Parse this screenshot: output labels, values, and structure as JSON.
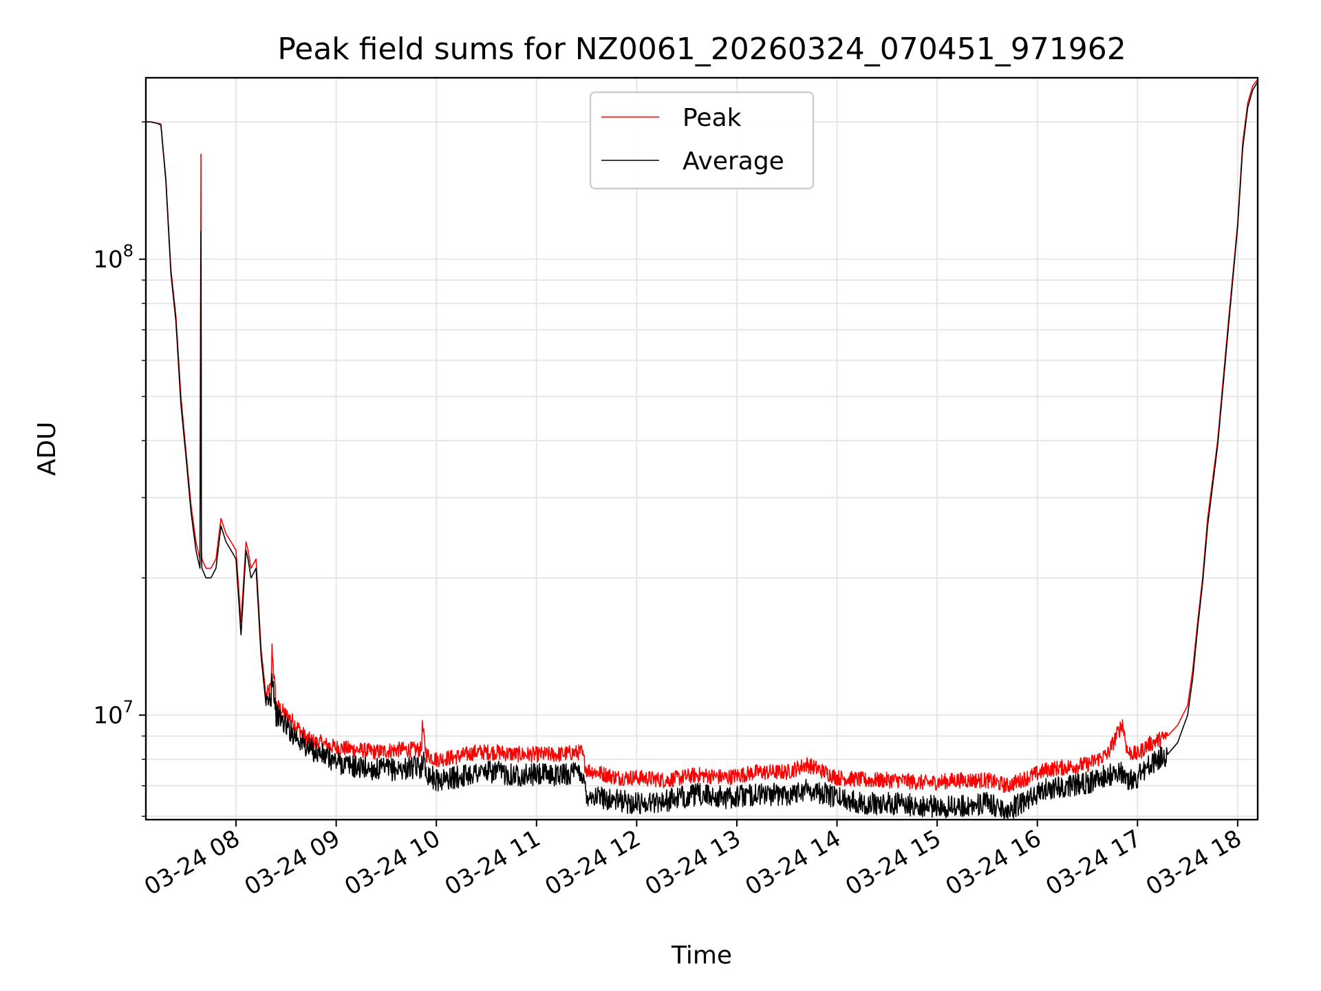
{
  "chart_data": {
    "type": "line",
    "title": "Peak field sums for NZ0061_20260324_070451_971962",
    "xlabel": "Time",
    "ylabel": "ADU",
    "yscale": "log",
    "ylim": [
      5900000,
      250000000
    ],
    "xlim_hours": [
      7.1,
      18.2
    ],
    "x_unit": "hour of day, 2026-03-24",
    "x_ticks": [
      {
        "value": 8,
        "label": "03-24 08"
      },
      {
        "value": 9,
        "label": "03-24 09"
      },
      {
        "value": 10,
        "label": "03-24 10"
      },
      {
        "value": 11,
        "label": "03-24 11"
      },
      {
        "value": 12,
        "label": "03-24 12"
      },
      {
        "value": 13,
        "label": "03-24 13"
      },
      {
        "value": 14,
        "label": "03-24 14"
      },
      {
        "value": 15,
        "label": "03-24 15"
      },
      {
        "value": 16,
        "label": "03-24 16"
      },
      {
        "value": 17,
        "label": "03-24 17"
      },
      {
        "value": 18,
        "label": "03-24 18"
      }
    ],
    "y_ticks": [
      {
        "value": 10000000,
        "base": "10",
        "exp": "7"
      },
      {
        "value": 100000000,
        "base": "10",
        "exp": "8"
      }
    ],
    "grid": true,
    "legend_position": "top-center",
    "series": [
      {
        "name": "Peak",
        "color": "#ff0000",
        "x": [
          7.1,
          7.15,
          7.2,
          7.25,
          7.3,
          7.35,
          7.4,
          7.45,
          7.5,
          7.55,
          7.6,
          7.64,
          7.65,
          7.655,
          7.66,
          7.7,
          7.75,
          7.8,
          7.85,
          7.9,
          7.95,
          8.0,
          8.05,
          8.1,
          8.12,
          8.15,
          8.2,
          8.25,
          8.3,
          8.35,
          8.36,
          8.4,
          8.45,
          8.5,
          8.55,
          8.6,
          8.7,
          8.8,
          8.85,
          8.9,
          9.0,
          9.2,
          9.4,
          9.6,
          9.85,
          9.86,
          9.9,
          10.0,
          10.2,
          10.4,
          10.6,
          10.8,
          11.0,
          11.2,
          11.45,
          11.5,
          11.8,
          12.0,
          12.3,
          12.6,
          12.9,
          13.2,
          13.5,
          13.7,
          14.0,
          14.3,
          14.6,
          14.9,
          15.2,
          15.5,
          15.7,
          15.9,
          16.1,
          16.3,
          16.5,
          16.7,
          16.85,
          16.9,
          17.0,
          17.1,
          17.2,
          17.3,
          17.4,
          17.5,
          17.55,
          17.6,
          17.65,
          17.7,
          17.8,
          17.9,
          18.0,
          18.05,
          18.1,
          18.15,
          18.2
        ],
        "values": [
          200000000,
          200000000,
          199000000,
          198000000,
          150000000,
          95000000,
          75000000,
          50000000,
          38000000,
          29000000,
          24000000,
          22000000,
          170000000,
          23000000,
          22000000,
          21000000,
          21000000,
          22000000,
          27000000,
          25000000,
          24000000,
          23000000,
          16000000,
          24000000,
          23000000,
          21000000,
          22000000,
          14000000,
          11000000,
          11500000,
          14000000,
          10500000,
          10300000,
          10000000,
          9800000,
          9500000,
          8900000,
          8700000,
          8700000,
          8600000,
          8500000,
          8400000,
          8300000,
          8400000,
          8400000,
          9400000,
          8200000,
          8000000,
          8100000,
          8300000,
          8300000,
          8200000,
          8200000,
          8200000,
          8300000,
          7600000,
          7300000,
          7300000,
          7200000,
          7400000,
          7300000,
          7500000,
          7500000,
          7800000,
          7300000,
          7200000,
          7200000,
          7100000,
          7200000,
          7200000,
          7000000,
          7300000,
          7600000,
          7700000,
          7800000,
          8200000,
          9600000,
          8300000,
          8200000,
          8600000,
          8800000,
          9000000,
          9500000,
          10500000,
          12500000,
          16000000,
          20000000,
          27000000,
          40000000,
          70000000,
          120000000,
          180000000,
          220000000,
          240000000,
          248000000
        ]
      },
      {
        "name": "Average",
        "color": "#000000",
        "x": [
          7.1,
          7.15,
          7.2,
          7.25,
          7.3,
          7.35,
          7.4,
          7.45,
          7.5,
          7.55,
          7.6,
          7.64,
          7.65,
          7.655,
          7.66,
          7.7,
          7.75,
          7.8,
          7.85,
          7.9,
          7.95,
          8.0,
          8.05,
          8.1,
          8.12,
          8.15,
          8.2,
          8.25,
          8.3,
          8.35,
          8.36,
          8.4,
          8.45,
          8.5,
          8.55,
          8.6,
          8.7,
          8.8,
          8.85,
          8.9,
          9.0,
          9.2,
          9.4,
          9.6,
          9.85,
          9.86,
          9.9,
          10.0,
          10.2,
          10.4,
          10.6,
          10.8,
          11.0,
          11.2,
          11.45,
          11.5,
          11.8,
          12.0,
          12.3,
          12.6,
          12.9,
          13.2,
          13.5,
          13.7,
          14.0,
          14.3,
          14.6,
          14.9,
          15.2,
          15.5,
          15.7,
          15.9,
          16.1,
          16.3,
          16.5,
          16.7,
          16.85,
          16.9,
          17.0,
          17.1,
          17.2,
          17.3,
          17.4,
          17.5,
          17.55,
          17.6,
          17.65,
          17.7,
          17.8,
          17.9,
          18.0,
          18.05,
          18.1,
          18.15,
          18.2
        ],
        "values": [
          200000000,
          200000000,
          199000000,
          197000000,
          148000000,
          93000000,
          73000000,
          48000000,
          37000000,
          28000000,
          23000000,
          21000000,
          115000000,
          22000000,
          21000000,
          20000000,
          20000000,
          21000000,
          26000000,
          24000000,
          23000000,
          22000000,
          15000000,
          23000000,
          22000000,
          20000000,
          21000000,
          13500000,
          10500000,
          11000000,
          12500000,
          10000000,
          9800000,
          9500000,
          9200000,
          9000000,
          8500000,
          8300000,
          8200000,
          8100000,
          7900000,
          7700000,
          7600000,
          7600000,
          7700000,
          8100000,
          7500000,
          7200000,
          7300000,
          7500000,
          7500000,
          7400000,
          7400000,
          7400000,
          7500000,
          6700000,
          6500000,
          6400000,
          6500000,
          6700000,
          6600000,
          6700000,
          6700000,
          6900000,
          6600000,
          6400000,
          6400000,
          6300000,
          6300000,
          6400000,
          6200000,
          6500000,
          6900000,
          7000000,
          7100000,
          7400000,
          7500000,
          7200000,
          7300000,
          7700000,
          8000000,
          8200000,
          8700000,
          10000000,
          12000000,
          15500000,
          19500000,
          26000000,
          39000000,
          68000000,
          118000000,
          175000000,
          215000000,
          235000000,
          245000000
        ]
      }
    ]
  }
}
